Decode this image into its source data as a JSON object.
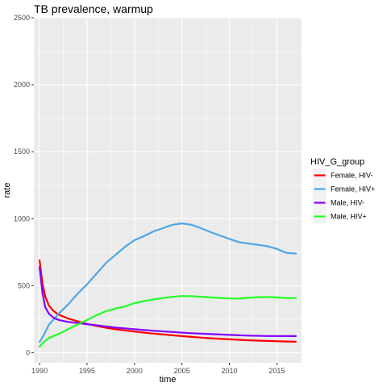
{
  "chart_data": {
    "type": "line",
    "title": "TB prevalence, warmup",
    "xlabel": "time",
    "ylabel": "rate",
    "xlim": [
      1989.4,
      2017.6
    ],
    "ylim": [
      -75,
      2500
    ],
    "x_ticks": [
      1990,
      1995,
      2000,
      2005,
      2010,
      2015
    ],
    "y_ticks": [
      0,
      500,
      1000,
      1500,
      2000,
      2500
    ],
    "grid": true,
    "legend_title": "HIV_G_group",
    "legend_position": "right",
    "series": [
      {
        "name": "Female, HIV-",
        "color": "#ff0000",
        "x": [
          1990,
          1990.3,
          1990.6,
          1991,
          1991.5,
          1992,
          1993,
          1994,
          1995,
          1996,
          1997,
          1998,
          2000,
          2002,
          2004,
          2006,
          2008,
          2010,
          2012,
          2014,
          2016,
          2017
        ],
        "y": [
          690,
          520,
          420,
          350,
          310,
          285,
          255,
          235,
          215,
          200,
          187,
          175,
          158,
          143,
          130,
          118,
          108,
          100,
          93,
          88,
          84,
          82
        ]
      },
      {
        "name": "Female, HIV+",
        "color": "#4da6e6",
        "x": [
          1990,
          1990.5,
          1991,
          1992,
          1993,
          1994,
          1995,
          1996,
          1997,
          1998,
          1999,
          2000,
          2001,
          2002,
          2003,
          2004,
          2005,
          2006,
          2007,
          2008,
          2009,
          2010,
          2011,
          2012,
          2013,
          2014,
          2015,
          2016,
          2017
        ],
        "y": [
          80,
          140,
          210,
          290,
          360,
          440,
          510,
          590,
          670,
          730,
          790,
          840,
          870,
          905,
          930,
          955,
          965,
          955,
          930,
          900,
          875,
          850,
          825,
          815,
          805,
          795,
          775,
          745,
          740
        ]
      },
      {
        "name": "Male, HIV-",
        "color": "#8000ff",
        "x": [
          1990,
          1990.3,
          1990.6,
          1991,
          1991.5,
          1992,
          1993,
          1994,
          1995,
          1996,
          1998,
          2000,
          2002,
          2004,
          2006,
          2008,
          2010,
          2012,
          2014,
          2016,
          2017
        ],
        "y": [
          640,
          450,
          340,
          290,
          260,
          245,
          230,
          222,
          213,
          205,
          188,
          175,
          164,
          155,
          146,
          139,
          133,
          128,
          125,
          124,
          124
        ]
      },
      {
        "name": "Male, HIV+",
        "color": "#22ff22",
        "x": [
          1990,
          1990.5,
          1991,
          1992,
          1993,
          1994,
          1995,
          1996,
          1997,
          1998,
          1999,
          2000,
          2001,
          2002,
          2003,
          2004,
          2005,
          2006,
          2007,
          2008,
          2009,
          2010,
          2011,
          2012,
          2013,
          2014,
          2015,
          2016,
          2017
        ],
        "y": [
          45,
          85,
          110,
          140,
          175,
          210,
          245,
          280,
          310,
          330,
          345,
          370,
          385,
          398,
          408,
          417,
          423,
          422,
          418,
          413,
          409,
          405,
          404,
          410,
          414,
          416,
          413,
          409,
          408
        ]
      }
    ]
  }
}
